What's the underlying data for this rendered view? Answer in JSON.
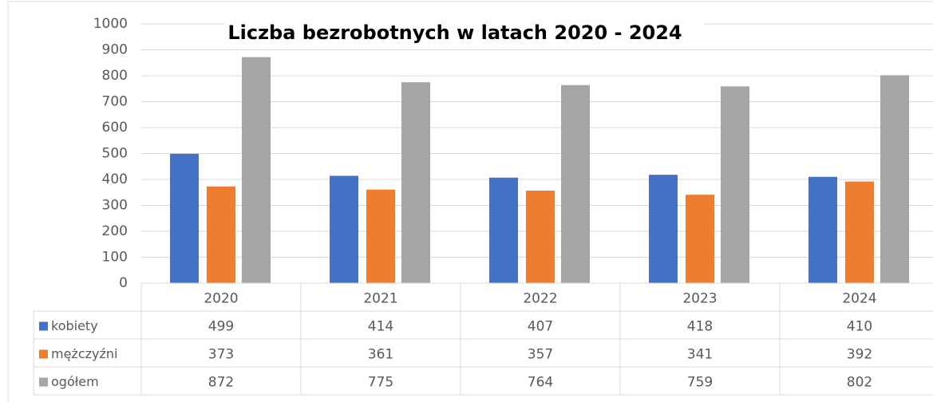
{
  "chart_data": {
    "type": "bar",
    "title": "Liczba bezrobotnych w latach 2020 - 2024",
    "categories": [
      "2020",
      "2021",
      "2022",
      "2023",
      "2024"
    ],
    "series": [
      {
        "name": "kobiety",
        "color": "#4472c4",
        "values": [
          499,
          414,
          407,
          418,
          410
        ]
      },
      {
        "name": "mężczyźni",
        "color": "#ed7d31",
        "values": [
          373,
          361,
          357,
          341,
          392
        ]
      },
      {
        "name": "ogółem",
        "color": "#a5a5a5",
        "values": [
          872,
          775,
          764,
          759,
          802
        ]
      }
    ],
    "ylim": [
      0,
      1000
    ],
    "yticks": [
      0,
      100,
      200,
      300,
      400,
      500,
      600,
      700,
      800,
      900,
      1000
    ],
    "grid": true
  }
}
